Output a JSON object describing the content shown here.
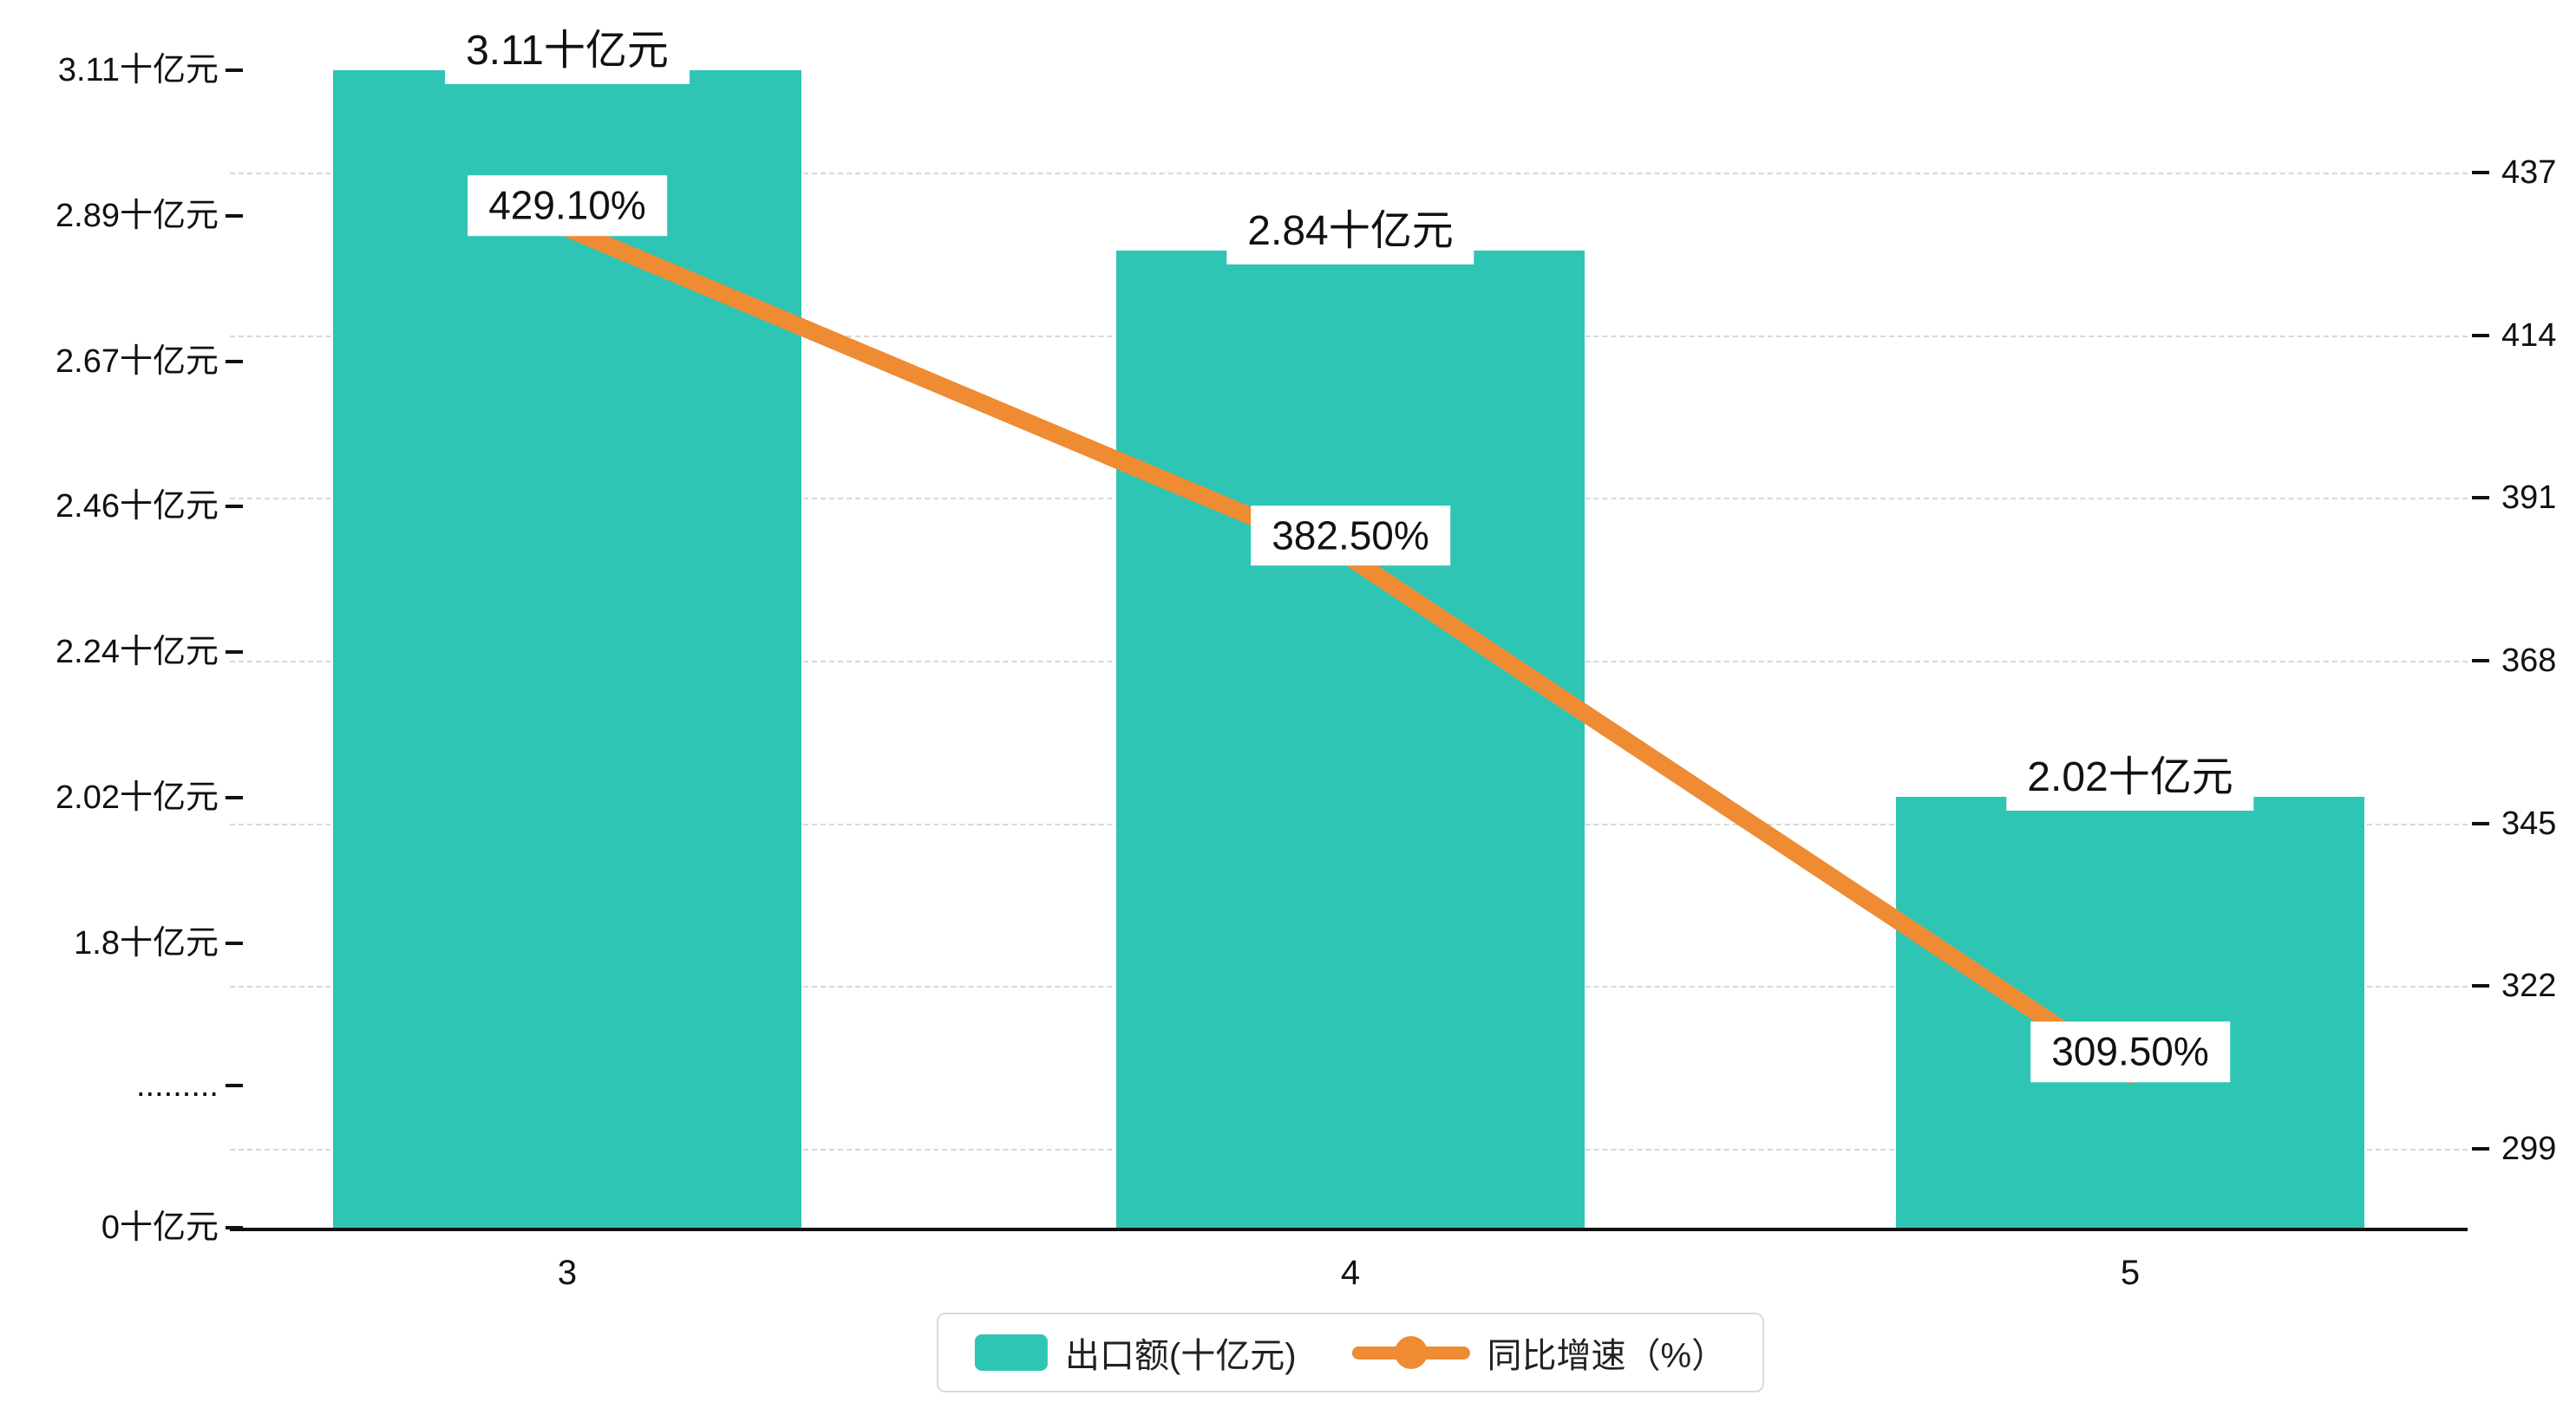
{
  "chart_data": {
    "type": "bar",
    "subtype": "bar+line combo, dual y-axis",
    "categories": [
      "3",
      "4",
      "5"
    ],
    "series": [
      {
        "name": "出口额(十亿元)",
        "type": "bar",
        "values": [
          3.11,
          2.84,
          2.02
        ],
        "labels": [
          "3.11十亿元",
          "2.84十亿元",
          "2.02十亿元"
        ],
        "color": "#2fc5b4",
        "axis": "left"
      },
      {
        "name": "同比增速（%）",
        "type": "line",
        "values": [
          429.1,
          382.5,
          309.5
        ],
        "labels": [
          "429.10%",
          "382.50%",
          "309.50%"
        ],
        "color": "#ee8b33",
        "axis": "right"
      }
    ],
    "left_axis": {
      "ticks": [
        "0十亿元",
        ".........",
        "1.8十亿元",
        "2.02十亿元",
        "2.24十亿元",
        "2.46十亿元",
        "2.67十亿元",
        "2.89十亿元",
        "3.11十亿元"
      ],
      "note": "broken axis: 0 then 1.8 to 3.11",
      "min": 0,
      "max": 3.11
    },
    "right_axis": {
      "ticks": [
        299,
        322,
        345,
        368,
        391,
        414,
        437
      ],
      "min": 299,
      "max": 437
    },
    "legend": [
      {
        "label": "出口额(十亿元)",
        "marker": "bar-swatch",
        "color": "#2fc5b4"
      },
      {
        "label": "同比增速（%）",
        "marker": "line-dot",
        "color": "#ee8b33"
      }
    ],
    "grid": "dashed horizontal gridlines at right-axis ticks",
    "title": "",
    "xlabel": "",
    "ylabel": ""
  }
}
